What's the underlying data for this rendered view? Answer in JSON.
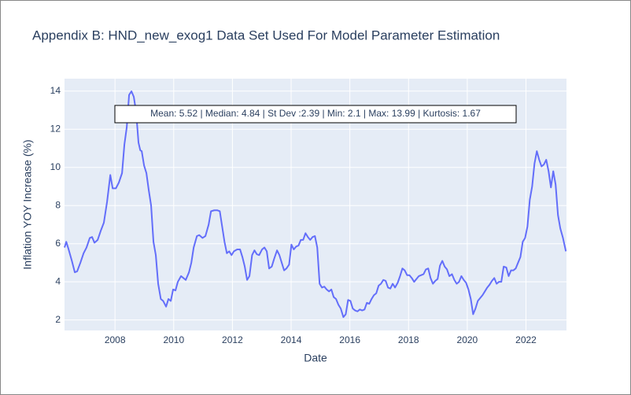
{
  "chart_data": {
    "type": "line",
    "title": "Appendix B: HND_new_exog1 Data Set Used For Model Parameter Estimation",
    "x_label": "Date",
    "y_label": "Inflation YOY Increase (%)",
    "annotation": "Mean: 5.52 | Median: 4.84 | St Dev :2.39 | Min: 2.1 | Max: 13.99 | Kurtosis: 1.67",
    "xlim": [
      2006.28,
      2023.38
    ],
    "ylim": [
      1.45,
      14.65
    ],
    "xticks": [
      2008,
      2010,
      2012,
      2014,
      2016,
      2018,
      2020,
      2022
    ],
    "yticks": [
      2,
      4,
      6,
      8,
      10,
      12,
      14
    ],
    "grid": true,
    "series": [
      {
        "color": "#636efa",
        "x": [
          2006.28,
          2006.34,
          2006.42,
          2006.53,
          2006.63,
          2006.71,
          2006.82,
          2006.93,
          2007.03,
          2007.14,
          2007.22,
          2007.3,
          2007.41,
          2007.52,
          2007.62,
          2007.73,
          2007.84,
          2007.92,
          2008.03,
          2008.13,
          2008.24,
          2008.32,
          2008.4,
          2008.48,
          2008.56,
          2008.64,
          2008.72,
          2008.8,
          2008.86,
          2008.91,
          2008.99,
          2009.07,
          2009.15,
          2009.23,
          2009.31,
          2009.39,
          2009.47,
          2009.56,
          2009.64,
          2009.74,
          2009.82,
          2009.9,
          2009.98,
          2010.06,
          2010.14,
          2010.25,
          2010.33,
          2010.41,
          2010.52,
          2010.6,
          2010.68,
          2010.79,
          2010.87,
          2010.98,
          2011.08,
          2011.19,
          2011.27,
          2011.38,
          2011.49,
          2011.57,
          2011.65,
          2011.73,
          2011.81,
          2011.89,
          2011.97,
          2012.05,
          2012.16,
          2012.26,
          2012.34,
          2012.42,
          2012.5,
          2012.58,
          2012.67,
          2012.75,
          2012.83,
          2012.91,
          2013.01,
          2013.09,
          2013.17,
          2013.25,
          2013.34,
          2013.42,
          2013.52,
          2013.6,
          2013.68,
          2013.76,
          2013.84,
          2013.93,
          2014.01,
          2014.09,
          2014.17,
          2014.25,
          2014.33,
          2014.41,
          2014.49,
          2014.57,
          2014.65,
          2014.73,
          2014.81,
          2014.89,
          2014.97,
          2015.05,
          2015.13,
          2015.21,
          2015.29,
          2015.37,
          2015.45,
          2015.53,
          2015.61,
          2015.69,
          2015.78,
          2015.86,
          2015.94,
          2016.02,
          2016.1,
          2016.18,
          2016.26,
          2016.34,
          2016.42,
          2016.5,
          2016.58,
          2016.66,
          2016.74,
          2016.82,
          2016.9,
          2016.98,
          2017.06,
          2017.14,
          2017.22,
          2017.3,
          2017.38,
          2017.46,
          2017.54,
          2017.63,
          2017.71,
          2017.79,
          2017.87,
          2017.95,
          2018.03,
          2018.11,
          2018.19,
          2018.27,
          2018.35,
          2018.43,
          2018.51,
          2018.59,
          2018.67,
          2018.75,
          2018.83,
          2018.91,
          2018.99,
          2019.07,
          2019.15,
          2019.23,
          2019.31,
          2019.39,
          2019.48,
          2019.56,
          2019.64,
          2019.72,
          2019.8,
          2019.88,
          2019.96,
          2020.04,
          2020.12,
          2020.2,
          2020.28,
          2020.36,
          2020.44,
          2020.52,
          2020.6,
          2020.68,
          2020.76,
          2020.84,
          2020.92,
          2021.0,
          2021.08,
          2021.16,
          2021.24,
          2021.33,
          2021.41,
          2021.49,
          2021.57,
          2021.65,
          2021.73,
          2021.81,
          2021.89,
          2021.97,
          2022.05,
          2022.13,
          2022.21,
          2022.29,
          2022.37,
          2022.45,
          2022.53,
          2022.61,
          2022.69,
          2022.77,
          2022.85,
          2022.93,
          2023.01,
          2023.09,
          2023.17,
          2023.26,
          2023.36
        ],
        "values": [
          5.8,
          6.1,
          5.7,
          5.1,
          4.5,
          4.55,
          5.0,
          5.5,
          5.8,
          6.3,
          6.35,
          6.05,
          6.2,
          6.7,
          7.1,
          8.2,
          9.6,
          8.9,
          8.9,
          9.2,
          9.7,
          11.2,
          12.1,
          13.8,
          13.99,
          13.7,
          12.9,
          11.3,
          10.9,
          10.85,
          10.1,
          9.7,
          8.8,
          8.0,
          6.1,
          5.4,
          3.9,
          3.1,
          3.0,
          2.7,
          3.1,
          3.0,
          3.6,
          3.55,
          4.0,
          4.3,
          4.2,
          4.1,
          4.5,
          5.0,
          5.8,
          6.4,
          6.45,
          6.3,
          6.4,
          7.0,
          7.7,
          7.75,
          7.75,
          7.7,
          6.9,
          6.1,
          5.5,
          5.6,
          5.4,
          5.6,
          5.7,
          5.7,
          5.3,
          4.8,
          4.1,
          4.3,
          5.4,
          5.65,
          5.45,
          5.4,
          5.7,
          5.8,
          5.6,
          4.7,
          4.8,
          5.2,
          5.65,
          5.4,
          5.0,
          4.6,
          4.7,
          4.9,
          5.95,
          5.7,
          5.85,
          5.9,
          6.2,
          6.2,
          6.55,
          6.35,
          6.2,
          6.35,
          6.4,
          5.8,
          3.9,
          3.7,
          3.75,
          3.6,
          3.5,
          3.6,
          3.2,
          3.1,
          2.8,
          2.6,
          2.15,
          2.3,
          3.05,
          3.0,
          2.6,
          2.5,
          2.45,
          2.55,
          2.5,
          2.55,
          2.9,
          2.85,
          3.1,
          3.3,
          3.4,
          3.8,
          3.9,
          4.1,
          4.05,
          3.7,
          3.65,
          3.9,
          3.7,
          3.95,
          4.3,
          4.7,
          4.6,
          4.35,
          4.35,
          4.2,
          4.0,
          4.15,
          4.3,
          4.35,
          4.4,
          4.65,
          4.7,
          4.2,
          3.9,
          4.05,
          4.15,
          4.85,
          5.1,
          4.8,
          4.65,
          4.3,
          4.4,
          4.1,
          3.9,
          4.0,
          4.3,
          4.1,
          3.95,
          3.6,
          3.1,
          2.3,
          2.6,
          3.0,
          3.15,
          3.3,
          3.5,
          3.7,
          3.85,
          4.05,
          4.2,
          3.9,
          4.0,
          4.0,
          4.8,
          4.75,
          4.3,
          4.6,
          4.6,
          4.7,
          5.0,
          5.3,
          6.1,
          6.3,
          6.9,
          8.3,
          9.0,
          10.2,
          10.85,
          10.4,
          10.05,
          10.15,
          10.4,
          9.8,
          8.95,
          9.8,
          9.1,
          7.5,
          6.8,
          6.3,
          5.6
        ]
      }
    ]
  }
}
